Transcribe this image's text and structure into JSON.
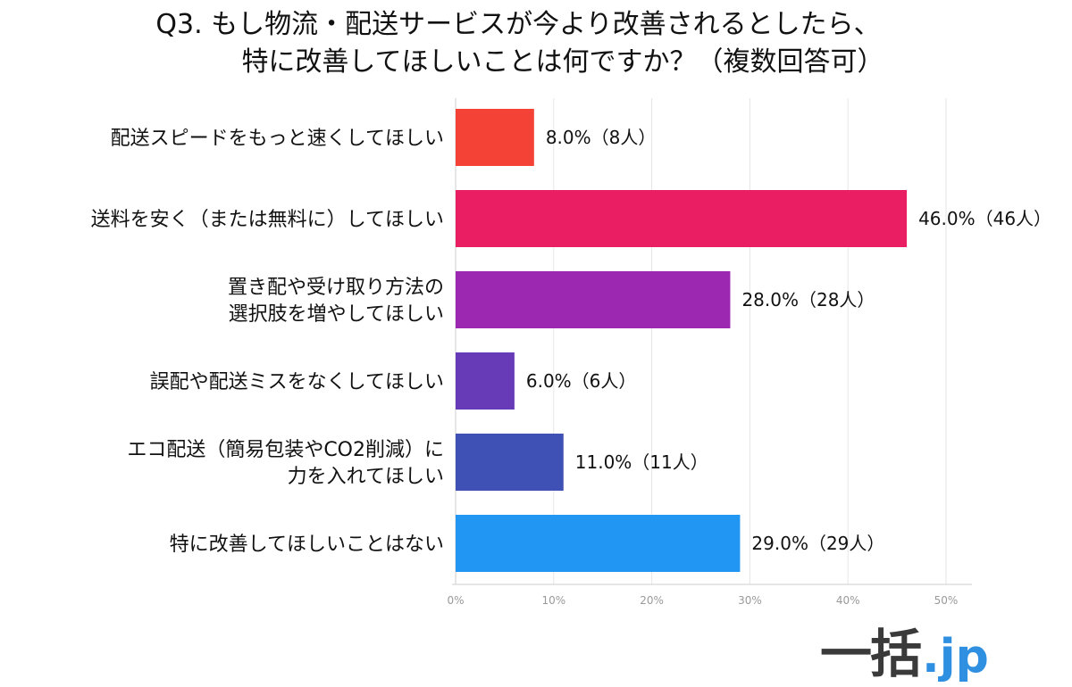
{
  "title": {
    "line1": "Q3. もし物流・配送サービスが今より改善されるとしたら、",
    "line2": "特に改善してほしいことは何ですか？（複数回答可）"
  },
  "chart_data": {
    "type": "bar",
    "orientation": "horizontal",
    "xlim": [
      0,
      50
    ],
    "x_ticks": [
      "0%",
      "10%",
      "20%",
      "30%",
      "40%",
      "50%"
    ],
    "grid": true,
    "categories": [
      [
        "配送スピードをもっと速くしてほしい"
      ],
      [
        "送料を安く（または無料に）してほしい"
      ],
      [
        "置き配や受け取り方法の",
        "選択肢を増やしてほしい"
      ],
      [
        "誤配や配送ミスをなくしてほしい"
      ],
      [
        "エコ配送（簡易包装やCO2削減）に",
        "力を入れてほしい"
      ],
      [
        "特に改善してほしいことはない"
      ]
    ],
    "values": [
      8.0,
      46.0,
      28.0,
      6.0,
      11.0,
      29.0
    ],
    "value_labels": [
      "8.0%（8人）",
      "46.0%（46人）",
      "28.0%（28人）",
      "6.0%（6人）",
      "11.0%（11人）",
      "29.0%（29人）"
    ],
    "colors": [
      "#f44336",
      "#e91e63",
      "#9c27b0",
      "#673ab7",
      "#3f51b5",
      "#2196f3"
    ]
  },
  "logo": {
    "main": "一括",
    "sub": ".jp"
  }
}
